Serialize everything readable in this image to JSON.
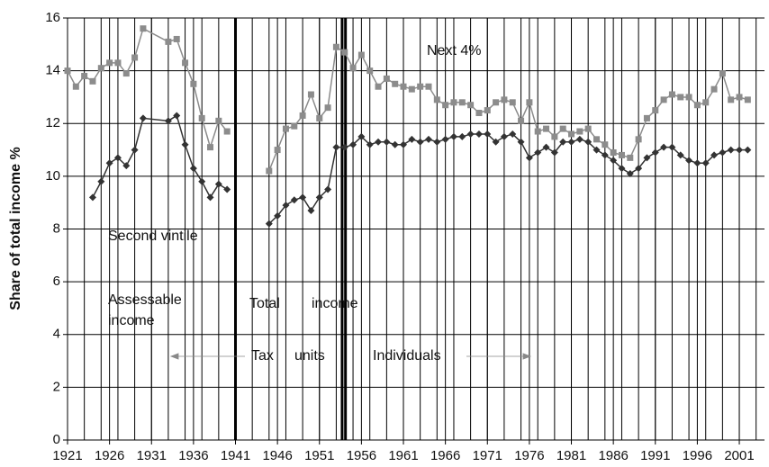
{
  "chart_data": {
    "type": "line",
    "ylabel": "Share of total income %",
    "xlim": [
      1921,
      2004
    ],
    "ylim": [
      0,
      16
    ],
    "yticks": [
      0,
      2,
      4,
      6,
      8,
      10,
      12,
      14,
      16
    ],
    "xticks": [
      1921,
      1926,
      1931,
      1936,
      1941,
      1946,
      1951,
      1956,
      1961,
      1966,
      1971,
      1976,
      1981,
      1986,
      1991,
      1996,
      2001
    ],
    "xgrid": [
      1923,
      1925,
      1927,
      1929,
      1931,
      1933,
      1935,
      1937,
      1939,
      1941,
      1943,
      1945,
      1947,
      1949,
      1951,
      1953,
      1955,
      1957,
      1959,
      1961,
      1963,
      1965,
      1967,
      1969,
      1971,
      1973,
      1975,
      1977,
      1979,
      1981,
      1983,
      1985,
      1987,
      1989,
      1991,
      1993,
      1995,
      1997,
      1999,
      2001,
      2003
    ],
    "grid": true,
    "breaks": [
      1941,
      1953.7,
      1954.1
    ],
    "annotations": [
      "Next 4%",
      "Second vintile",
      "Assessable",
      "income",
      "Total",
      "income",
      "Tax",
      "units",
      "Individuals"
    ],
    "series": [
      {
        "name": "Next 4%",
        "color": "#8c8c8c",
        "marker": "square",
        "x": [
          1921,
          1922,
          1923,
          1924,
          1925,
          1926,
          1927,
          1928,
          1929,
          1930,
          1933,
          1934,
          1935,
          1936,
          1937,
          1938,
          1939,
          1940,
          1941,
          1945,
          1946,
          1947,
          1948,
          1949,
          1950,
          1951,
          1952,
          1953,
          1954,
          1955,
          1956,
          1957,
          1958,
          1959,
          1960,
          1961,
          1962,
          1963,
          1964,
          1965,
          1966,
          1967,
          1968,
          1969,
          1970,
          1971,
          1972,
          1973,
          1974,
          1975,
          1976,
          1977,
          1978,
          1979,
          1980,
          1981,
          1982,
          1983,
          1984,
          1985,
          1986,
          1987,
          1988,
          1989,
          1990,
          1991,
          1992,
          1993,
          1994,
          1995,
          1996,
          1997,
          1998,
          1999,
          2000,
          2001,
          2002
        ],
        "values": [
          14.0,
          13.4,
          13.8,
          13.6,
          14.1,
          14.3,
          14.3,
          13.9,
          14.5,
          15.6,
          15.1,
          15.2,
          14.3,
          13.5,
          12.2,
          11.1,
          12.1,
          11.7,
          null,
          10.2,
          11.0,
          11.8,
          11.9,
          12.3,
          13.1,
          12.2,
          12.6,
          14.9,
          14.7,
          14.1,
          14.6,
          14.0,
          13.4,
          13.7,
          13.5,
          13.4,
          13.3,
          13.4,
          13.4,
          12.9,
          12.7,
          12.8,
          12.8,
          12.7,
          12.4,
          12.5,
          12.8,
          12.9,
          12.8,
          12.1,
          12.8,
          11.7,
          11.8,
          11.5,
          11.8,
          11.6,
          11.7,
          11.8,
          11.4,
          11.2,
          10.9,
          10.8,
          10.7,
          11.4,
          12.2,
          12.5,
          12.9,
          13.1,
          13.0,
          13.0,
          12.7,
          12.8,
          13.3,
          13.9,
          12.9,
          13.0,
          12.9
        ]
      },
      {
        "name": "Second vintile",
        "color": "#333333",
        "marker": "diamond",
        "x": [
          1924,
          1925,
          1926,
          1927,
          1928,
          1929,
          1930,
          1933,
          1934,
          1935,
          1936,
          1937,
          1938,
          1939,
          1940,
          1941,
          1945,
          1946,
          1947,
          1948,
          1949,
          1950,
          1951,
          1952,
          1953,
          1954,
          1955,
          1956,
          1957,
          1958,
          1959,
          1960,
          1961,
          1962,
          1963,
          1964,
          1965,
          1966,
          1967,
          1968,
          1969,
          1970,
          1971,
          1972,
          1973,
          1974,
          1975,
          1976,
          1977,
          1978,
          1979,
          1980,
          1981,
          1982,
          1983,
          1984,
          1985,
          1986,
          1987,
          1988,
          1989,
          1990,
          1991,
          1992,
          1993,
          1994,
          1995,
          1996,
          1997,
          1998,
          1999,
          2000,
          2001,
          2002
        ],
        "values": [
          9.2,
          9.8,
          10.5,
          10.7,
          10.4,
          11.0,
          12.2,
          12.1,
          12.3,
          11.2,
          10.3,
          9.8,
          9.2,
          9.7,
          9.5,
          null,
          8.2,
          8.5,
          8.9,
          9.1,
          9.2,
          8.7,
          9.2,
          9.5,
          11.1,
          11.1,
          11.2,
          11.5,
          11.2,
          11.3,
          11.3,
          11.2,
          11.2,
          11.4,
          11.3,
          11.4,
          11.3,
          11.4,
          11.5,
          11.5,
          11.6,
          11.6,
          11.6,
          11.3,
          11.5,
          11.6,
          11.3,
          10.7,
          10.9,
          11.1,
          10.9,
          11.3,
          11.3,
          11.4,
          11.3,
          11.0,
          10.8,
          10.6,
          10.3,
          10.1,
          10.3,
          10.7,
          10.9,
          11.1,
          11.1,
          10.8,
          10.6,
          10.5,
          10.5,
          10.8,
          10.9,
          11.0,
          11.0,
          11.0
        ]
      }
    ]
  }
}
